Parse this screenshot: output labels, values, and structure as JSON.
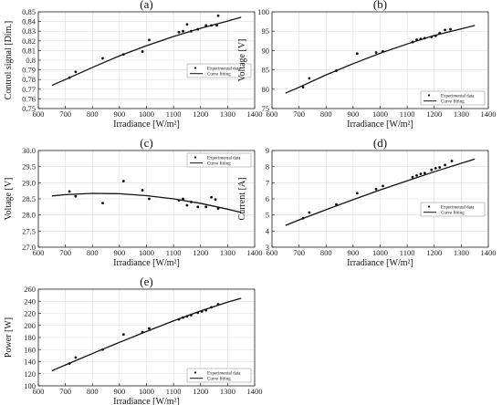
{
  "chart_data": [
    {
      "label": "(a)",
      "type": "scatter",
      "xlabel": "Irradiance [W/m²]",
      "ylabel": "Control signal [Dim.]",
      "xlim": [
        600,
        1400
      ],
      "ylim": [
        0.75,
        0.85
      ],
      "xticks": [
        600,
        700,
        800,
        900,
        1000,
        1100,
        1200,
        1300,
        1400
      ],
      "yticks": [
        0.75,
        0.76,
        0.77,
        0.78,
        0.79,
        0.8,
        0.81,
        0.82,
        0.83,
        0.84,
        0.85
      ],
      "ytick_decimals": 2,
      "ytick_trim": true,
      "legend": {
        "placement": "center-right",
        "items": [
          "Experimental data",
          "Curve fitting"
        ]
      },
      "points": [
        [
          715,
          0.782
        ],
        [
          738,
          0.788
        ],
        [
          838,
          0.802
        ],
        [
          915,
          0.806
        ],
        [
          985,
          0.809
        ],
        [
          1010,
          0.821
        ],
        [
          1120,
          0.829
        ],
        [
          1135,
          0.83
        ],
        [
          1150,
          0.837
        ],
        [
          1165,
          0.83
        ],
        [
          1190,
          0.832
        ],
        [
          1220,
          0.836
        ],
        [
          1240,
          0.836
        ],
        [
          1260,
          0.836
        ],
        [
          1265,
          0.846
        ]
      ],
      "curve": [
        [
          650,
          0.774
        ],
        [
          700,
          0.78
        ],
        [
          800,
          0.7925
        ],
        [
          900,
          0.8045
        ],
        [
          1000,
          0.815
        ],
        [
          1100,
          0.8245
        ],
        [
          1200,
          0.833
        ],
        [
          1300,
          0.8405
        ],
        [
          1350,
          0.8445
        ]
      ]
    },
    {
      "label": "(b)",
      "type": "scatter",
      "xlabel": "Irradiance [W/m²]",
      "ylabel": "Voltage [V]",
      "xlim": [
        600,
        1400
      ],
      "ylim": [
        75,
        100
      ],
      "xticks": [
        600,
        700,
        800,
        900,
        1000,
        1100,
        1200,
        1300,
        1400
      ],
      "yticks": [
        75,
        80,
        85,
        90,
        95,
        100
      ],
      "ytick_decimals": 0,
      "ytick_trim": false,
      "legend": {
        "placement": "bottom-right",
        "items": [
          "Experimental data",
          "Curve fitting"
        ]
      },
      "points": [
        [
          715,
          80.5
        ],
        [
          738,
          82.8
        ],
        [
          838,
          84.8
        ],
        [
          915,
          89.2
        ],
        [
          985,
          89.5
        ],
        [
          1010,
          89.8
        ],
        [
          1120,
          92.2
        ],
        [
          1135,
          92.8
        ],
        [
          1150,
          93.0
        ],
        [
          1165,
          93.2
        ],
        [
          1190,
          93.5
        ],
        [
          1205,
          93.8
        ],
        [
          1220,
          94.5
        ],
        [
          1240,
          95.3
        ],
        [
          1260,
          95.5
        ]
      ],
      "curve": [
        [
          650,
          79.0
        ],
        [
          700,
          80.5
        ],
        [
          800,
          83.7
        ],
        [
          900,
          86.6
        ],
        [
          1000,
          89.3
        ],
        [
          1100,
          91.7
        ],
        [
          1200,
          93.9
        ],
        [
          1300,
          95.6
        ],
        [
          1350,
          96.5
        ]
      ]
    },
    {
      "label": "(c)",
      "type": "scatter",
      "xlabel": "Irradiance [W/m²]",
      "ylabel": "Voltage [V]",
      "xlim": [
        600,
        1400
      ],
      "ylim": [
        27.0,
        30.0
      ],
      "xticks": [
        600,
        700,
        800,
        900,
        1000,
        1100,
        1200,
        1300,
        1400
      ],
      "yticks": [
        27.0,
        27.5,
        28.0,
        28.5,
        29.0,
        29.5,
        30.0
      ],
      "ytick_decimals": 1,
      "ytick_trim": false,
      "legend": {
        "placement": "top-right",
        "items": [
          "Experimental data",
          "Curve fitting"
        ]
      },
      "points": [
        [
          715,
          28.73
        ],
        [
          738,
          28.58
        ],
        [
          838,
          28.37
        ],
        [
          915,
          29.05
        ],
        [
          985,
          28.77
        ],
        [
          1010,
          28.5
        ],
        [
          1120,
          28.45
        ],
        [
          1135,
          28.5
        ],
        [
          1150,
          28.3
        ],
        [
          1165,
          28.4
        ],
        [
          1190,
          28.25
        ],
        [
          1220,
          28.25
        ],
        [
          1240,
          28.55
        ],
        [
          1255,
          28.48
        ],
        [
          1265,
          28.2
        ]
      ],
      "curve": [
        [
          650,
          28.59
        ],
        [
          700,
          28.63
        ],
        [
          800,
          28.67
        ],
        [
          900,
          28.66
        ],
        [
          1000,
          28.6
        ],
        [
          1100,
          28.5
        ],
        [
          1200,
          28.36
        ],
        [
          1300,
          28.18
        ],
        [
          1350,
          28.08
        ]
      ]
    },
    {
      "label": "(d)",
      "type": "scatter",
      "xlabel": "Irradiance [W/m²]",
      "ylabel": "Current [A]",
      "xlim": [
        600,
        1400
      ],
      "ylim": [
        3,
        9
      ],
      "xticks": [
        600,
        700,
        800,
        900,
        1000,
        1100,
        1200,
        1300,
        1400
      ],
      "yticks": [
        3,
        4,
        5,
        6,
        7,
        8,
        9
      ],
      "ytick_decimals": 0,
      "ytick_trim": false,
      "legend": {
        "placement": "center-right",
        "items": [
          "Experimental data",
          "Curve fitting"
        ]
      },
      "points": [
        [
          715,
          4.8
        ],
        [
          738,
          5.15
        ],
        [
          838,
          5.65
        ],
        [
          915,
          6.35
        ],
        [
          985,
          6.6
        ],
        [
          1010,
          6.8
        ],
        [
          1120,
          7.35
        ],
        [
          1135,
          7.45
        ],
        [
          1150,
          7.55
        ],
        [
          1165,
          7.6
        ],
        [
          1190,
          7.8
        ],
        [
          1205,
          7.9
        ],
        [
          1220,
          7.95
        ],
        [
          1240,
          8.1
        ],
        [
          1265,
          8.35
        ]
      ],
      "curve": [
        [
          650,
          4.35
        ],
        [
          700,
          4.69
        ],
        [
          800,
          5.33
        ],
        [
          900,
          5.95
        ],
        [
          1000,
          6.55
        ],
        [
          1100,
          7.12
        ],
        [
          1200,
          7.68
        ],
        [
          1300,
          8.21
        ],
        [
          1350,
          8.47
        ]
      ]
    },
    {
      "label": "(e)",
      "type": "scatter",
      "xlabel": "Irradiance [W/m²]",
      "ylabel": "Power [W]",
      "xlim": [
        600,
        1400
      ],
      "ylim": [
        100,
        260
      ],
      "xticks": [
        600,
        700,
        800,
        900,
        1000,
        1100,
        1200,
        1300,
        1400
      ],
      "yticks": [
        100,
        120,
        140,
        160,
        180,
        200,
        220,
        240,
        260
      ],
      "ytick_decimals": 0,
      "ytick_trim": false,
      "legend": {
        "placement": "bottom-right",
        "items": [
          "Experimental data",
          "Curve fitting"
        ]
      },
      "points": [
        [
          715,
          137
        ],
        [
          738,
          147
        ],
        [
          838,
          160
        ],
        [
          915,
          185
        ],
        [
          985,
          189
        ],
        [
          1010,
          195
        ],
        [
          1120,
          210
        ],
        [
          1135,
          213
        ],
        [
          1150,
          215
        ],
        [
          1165,
          217
        ],
        [
          1190,
          221
        ],
        [
          1205,
          223
        ],
        [
          1220,
          225
        ],
        [
          1240,
          230
        ],
        [
          1265,
          235
        ]
      ],
      "curve": [
        [
          650,
          125
        ],
        [
          700,
          134.5
        ],
        [
          800,
          153.5
        ],
        [
          900,
          172
        ],
        [
          1000,
          190
        ],
        [
          1100,
          207.5
        ],
        [
          1200,
          224
        ],
        [
          1300,
          238.5
        ],
        [
          1350,
          245
        ]
      ]
    }
  ]
}
